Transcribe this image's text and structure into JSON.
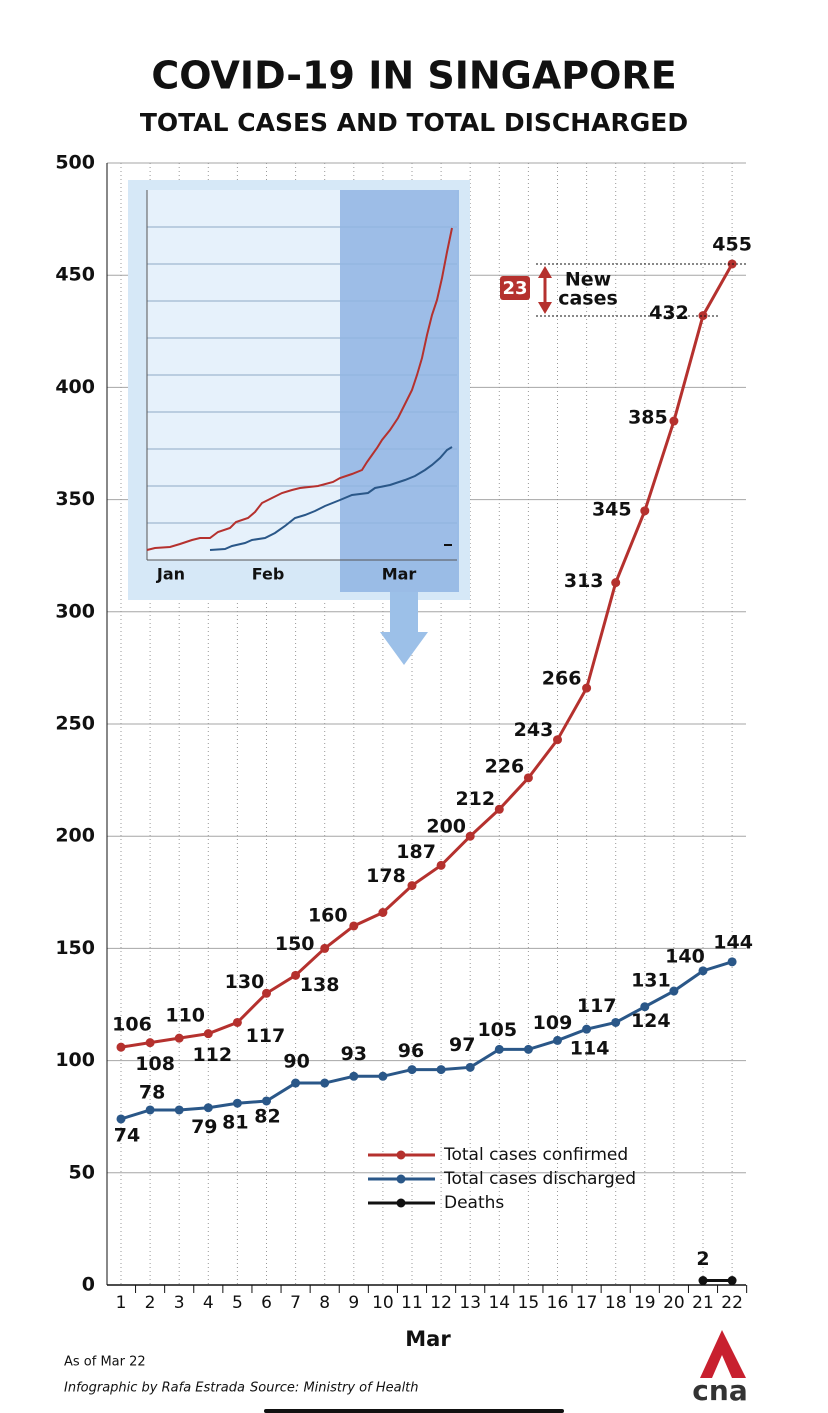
{
  "chart_data": {
    "type": "line",
    "title": "COVID-19 IN SINGAPORE",
    "subtitle": "TOTAL CASES AND TOTAL DISCHARGED",
    "x_label": "Mar",
    "categories": [
      "1",
      "2",
      "3",
      "4",
      "5",
      "6",
      "7",
      "8",
      "9",
      "10",
      "11",
      "12",
      "13",
      "14",
      "15",
      "16",
      "17",
      "18",
      "19",
      "20",
      "21",
      "22"
    ],
    "series": [
      {
        "name": "Total cases confirmed",
        "color": "#b5312e",
        "values": [
          106,
          108,
          110,
          112,
          117,
          130,
          138,
          150,
          160,
          166,
          178,
          187,
          200,
          212,
          226,
          243,
          266,
          313,
          345,
          385,
          432,
          455
        ],
        "value_labels": [
          "106",
          "108",
          "110",
          "112",
          "117",
          "130",
          "138",
          "150",
          "160",
          null,
          "178",
          "187",
          "200",
          "212",
          "226",
          "243",
          "266",
          "313",
          "345",
          "385",
          "432",
          "455"
        ]
      },
      {
        "name": "Total cases discharged",
        "color": "#2a5788",
        "values": [
          74,
          78,
          78,
          79,
          81,
          82,
          90,
          90,
          93,
          93,
          96,
          96,
          97,
          105,
          105,
          109,
          114,
          117,
          124,
          131,
          140,
          144
        ],
        "value_labels": [
          "74",
          "78",
          null,
          "79",
          "81",
          "82",
          "90",
          null,
          "93",
          null,
          "96",
          null,
          "97",
          "105",
          null,
          "109",
          "114",
          "117",
          "124",
          "131",
          "140",
          "144"
        ]
      },
      {
        "name": "Deaths",
        "color": "#111111",
        "values": [
          null,
          null,
          null,
          null,
          null,
          null,
          null,
          null,
          null,
          null,
          null,
          null,
          null,
          null,
          null,
          null,
          null,
          null,
          null,
          null,
          2,
          2
        ],
        "value_labels": [
          null,
          null,
          null,
          null,
          null,
          null,
          null,
          null,
          null,
          null,
          null,
          null,
          null,
          null,
          null,
          null,
          null,
          null,
          null,
          null,
          "2",
          null
        ]
      }
    ],
    "ylim": [
      0,
      500
    ],
    "yticks": [
      0,
      50,
      100,
      150,
      200,
      250,
      300,
      350,
      400,
      450,
      500
    ],
    "grid": true,
    "annotations": [
      "23",
      "New",
      "cases"
    ]
  },
  "inset": {
    "labels": [
      "Jan",
      "Feb",
      "Mar"
    ]
  },
  "footer": {
    "date": "As of Mar 22",
    "credit": "Infographic by Rafa Estrada",
    "source": "Source: Ministry of Health",
    "logo": "cna"
  }
}
